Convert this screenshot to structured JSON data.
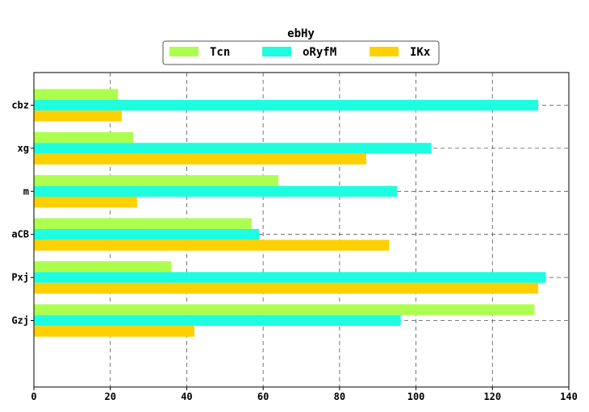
{
  "chart_data": {
    "type": "bar",
    "orientation": "horizontal",
    "title": "ebHy",
    "xlabel": "",
    "ylabel": "",
    "categories": [
      "cbz",
      "xg",
      "m",
      "aCB",
      "Pxj",
      "Gzj"
    ],
    "series": [
      {
        "name": "Tcn",
        "color": "#adff4f",
        "values": [
          22,
          26,
          64,
          57,
          36,
          131
        ]
      },
      {
        "name": "oRyfM",
        "color": "#1ffde0",
        "values": [
          132,
          104,
          95,
          59,
          134,
          96
        ]
      },
      {
        "name": "IKx",
        "color": "#ffd000",
        "values": [
          23,
          87,
          27,
          93,
          132,
          42
        ]
      }
    ],
    "xlim": [
      0,
      140
    ],
    "xticks": [
      0,
      20,
      40,
      60,
      80,
      100,
      120,
      140
    ],
    "grid": true,
    "legend_position": "top-center"
  }
}
